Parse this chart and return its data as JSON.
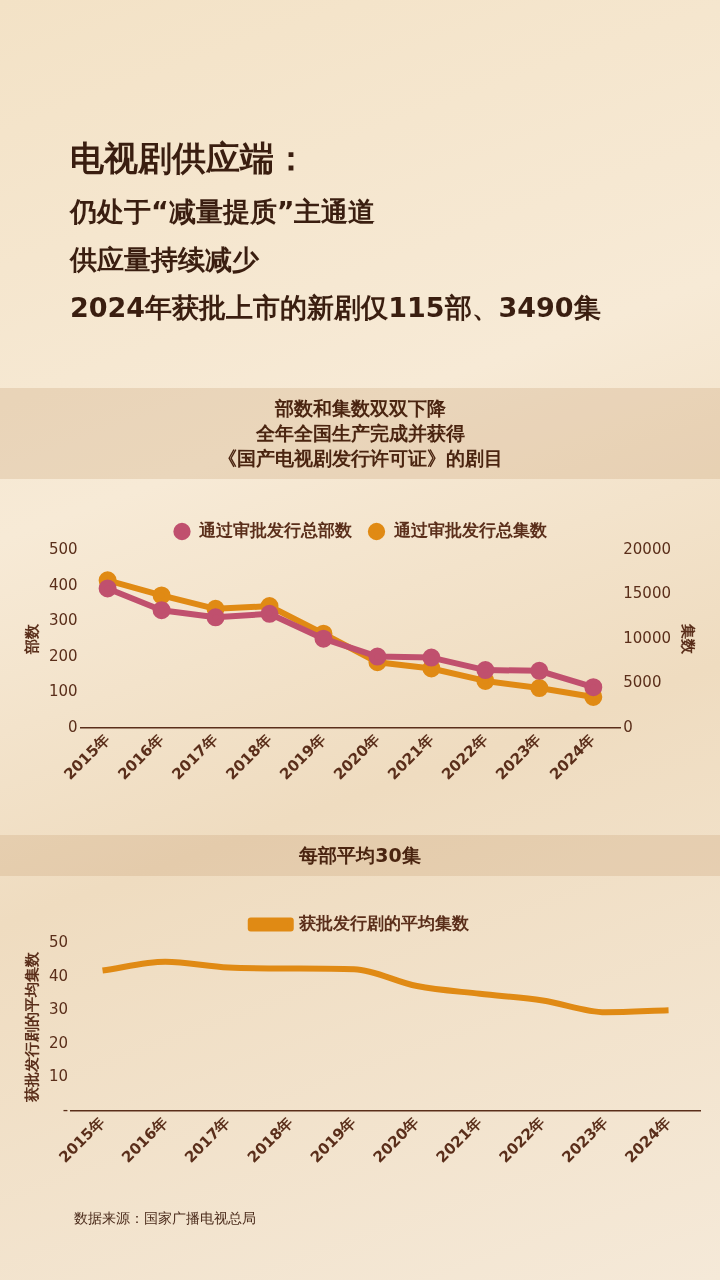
{
  "chart_data": [
    {
      "type": "line",
      "title": "部数和集数双双下降",
      "subtitle": "全年全国生产完成并获得",
      "annotations": [
        "电视剧供应端：",
        "仍处于“减量提质”主通道",
        "供应量持续减少",
        "2024年获批上市的新剧仅115部、3490集",
        "《国产电视剧发行许可证》的剧目"
      ],
      "categories": [
        "2015年",
        "2016年",
        "2017年",
        "2018年",
        "2019年",
        "2020年",
        "2021年",
        "2022年",
        "2023年",
        "2024年"
      ],
      "series": [
        {
          "name": "通过审批发行总部数",
          "color": "#c0506e",
          "values": [
            392,
            331,
            311,
            321,
            251,
            201,
            198,
            163,
            161,
            115
          ]
        },
        {
          "name": "通过审批发行总集数",
          "color": "#e08a14",
          "axis": "y2",
          "values": [
            16600,
            14900,
            13400,
            13700,
            10600,
            7400,
            6700,
            5300,
            4500,
            3500
          ]
        }
      ],
      "ylabel": "部数",
      "y2label": "集数",
      "ylim": [
        0,
        500
      ],
      "yticks": [
        0,
        100,
        200,
        300,
        400,
        500
      ],
      "y2lim": [
        0,
        20000
      ],
      "y2ticks": [
        0,
        5000,
        10000,
        15000,
        20000
      ],
      "legend": "top",
      "marker": "circle",
      "grid": false
    },
    {
      "type": "line",
      "title": "每部平均30集",
      "annotations": [
        "数据来源：国家广播电视总局"
      ],
      "categories": [
        "2015年",
        "2016年",
        "2017年",
        "2018年",
        "2019年",
        "2020年",
        "2021年",
        "2022年",
        "2023年",
        "2024年"
      ],
      "series": [
        {
          "name": "获批发行剧的平均集数",
          "color": "#e08a14",
          "values": [
            41.8,
            44.4,
            42.7,
            42.4,
            42.2,
            37.2,
            34.9,
            32.9,
            29.4,
            30.0
          ]
        }
      ],
      "ylabel": "获批发行剧的平均集数",
      "ylim": [
        0,
        50
      ],
      "yticks": [
        {
          "value": 0,
          "label": "-"
        },
        10,
        20,
        30,
        40,
        50
      ],
      "legend": "top",
      "marker": "none",
      "grid": false
    }
  ]
}
